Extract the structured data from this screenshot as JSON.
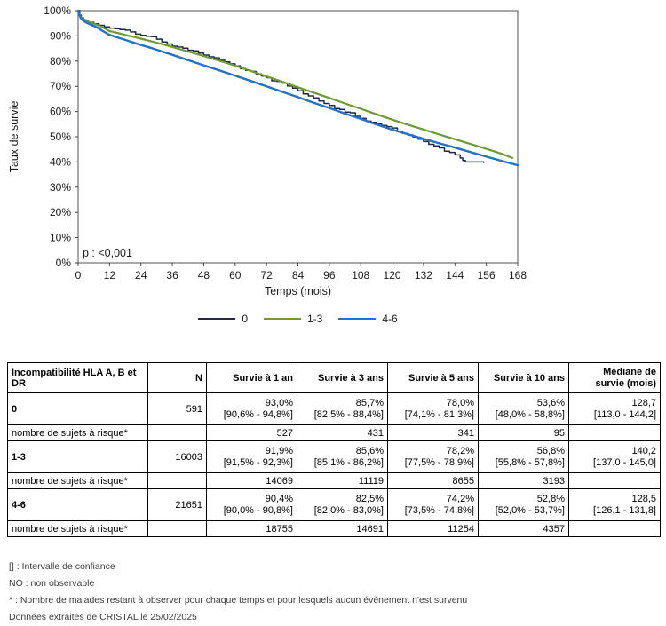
{
  "chart_data": {
    "type": "line",
    "title": "",
    "xlabel": "Temps (mois)",
    "ylabel": "Taux de survie",
    "annotation": "p : <0,001",
    "grid": false,
    "legend_position": "bottom",
    "xlim": [
      0,
      168
    ],
    "ylim": [
      0,
      100
    ],
    "x_ticks": {
      "values": [
        0,
        12,
        24,
        36,
        48,
        60,
        72,
        84,
        96,
        108,
        120,
        132,
        144,
        156,
        168
      ],
      "labels": [
        "0",
        "12",
        "24",
        "36",
        "48",
        "60",
        "72",
        "84",
        "96",
        "108",
        "120",
        "132",
        "144",
        "156",
        "168"
      ]
    },
    "y_ticks": {
      "values": [
        0,
        10,
        20,
        30,
        40,
        50,
        60,
        70,
        80,
        90,
        100
      ],
      "labels": [
        "0%",
        "10%",
        "20%",
        "30%",
        "40%",
        "50%",
        "60%",
        "70%",
        "80%",
        "90%",
        "100%"
      ]
    },
    "series": [
      {
        "name": "0",
        "color": "#1f2a4d",
        "style_hint": "km-step",
        "points": [
          [
            0,
            100
          ],
          [
            0.6,
            98.2
          ],
          [
            1.2,
            97.2
          ],
          [
            2,
            96.4
          ],
          [
            3,
            95.8
          ],
          [
            4,
            95.4
          ],
          [
            6,
            94.8
          ],
          [
            8,
            94.2
          ],
          [
            10,
            93.6
          ],
          [
            12,
            93.1
          ],
          [
            14,
            92.9
          ],
          [
            16,
            92.5
          ],
          [
            18,
            92.3
          ],
          [
            20,
            91.6
          ],
          [
            22,
            90.7
          ],
          [
            24,
            90.2
          ],
          [
            26,
            89.9
          ],
          [
            28,
            89.7
          ],
          [
            30,
            88.7
          ],
          [
            32,
            87.6
          ],
          [
            34,
            86.8
          ],
          [
            36,
            85.9
          ],
          [
            38,
            85.6
          ],
          [
            40,
            85.1
          ],
          [
            42,
            84.3
          ],
          [
            44,
            84.1
          ],
          [
            46,
            83.2
          ],
          [
            48,
            82.4
          ],
          [
            50,
            81.7
          ],
          [
            52,
            81.3
          ],
          [
            54,
            80.3
          ],
          [
            56,
            79.7
          ],
          [
            58,
            78.9
          ],
          [
            60,
            78.1
          ],
          [
            62,
            77.0
          ],
          [
            64,
            76.3
          ],
          [
            66,
            75.9
          ],
          [
            68,
            74.9
          ],
          [
            70,
            74.1
          ],
          [
            72,
            73.4
          ],
          [
            74,
            72.2
          ],
          [
            76,
            71.9
          ],
          [
            78,
            71.3
          ],
          [
            80,
            70.1
          ],
          [
            82,
            69.3
          ],
          [
            84,
            68.2
          ],
          [
            86,
            67.0
          ],
          [
            88,
            66.2
          ],
          [
            90,
            65.4
          ],
          [
            92,
            64.2
          ],
          [
            94,
            63.2
          ],
          [
            96,
            62.4
          ],
          [
            98,
            61.2
          ],
          [
            100,
            60.8
          ],
          [
            102,
            59.8
          ],
          [
            104,
            59.5
          ],
          [
            106,
            58.1
          ],
          [
            108,
            57.3
          ],
          [
            110,
            56.2
          ],
          [
            112,
            55.7
          ],
          [
            114,
            55.1
          ],
          [
            116,
            54.5
          ],
          [
            118,
            54.0
          ],
          [
            120,
            53.5
          ],
          [
            122,
            52.2
          ],
          [
            124,
            51.3
          ],
          [
            126,
            50.7
          ],
          [
            128,
            49.9
          ],
          [
            130,
            49.0
          ],
          [
            132,
            48.1
          ],
          [
            134,
            47.0
          ],
          [
            136,
            46.4
          ],
          [
            138,
            45.6
          ],
          [
            140,
            44.3
          ],
          [
            142,
            43.8
          ],
          [
            144,
            42.8
          ],
          [
            146,
            41.6
          ],
          [
            147,
            40.6
          ],
          [
            148,
            40.0
          ],
          [
            155,
            39.8
          ]
        ]
      },
      {
        "name": "1-3",
        "color": "#6e9a33",
        "style_hint": "line",
        "points": [
          [
            0,
            100
          ],
          [
            0.8,
            97.9
          ],
          [
            1.6,
            97.0
          ],
          [
            3,
            96.0
          ],
          [
            5,
            95.2
          ],
          [
            7,
            94.5
          ],
          [
            9,
            93.6
          ],
          [
            12,
            91.9
          ],
          [
            15,
            91.2
          ],
          [
            18,
            90.4
          ],
          [
            21,
            89.7
          ],
          [
            24,
            88.9
          ],
          [
            27,
            88.1
          ],
          [
            30,
            87.3
          ],
          [
            33,
            86.5
          ],
          [
            36,
            85.6
          ],
          [
            42,
            83.8
          ],
          [
            48,
            82.0
          ],
          [
            54,
            80.1
          ],
          [
            60,
            78.2
          ],
          [
            66,
            76.1
          ],
          [
            72,
            73.9
          ],
          [
            78,
            71.8
          ],
          [
            84,
            69.6
          ],
          [
            90,
            67.5
          ],
          [
            96,
            65.4
          ],
          [
            102,
            63.2
          ],
          [
            108,
            61.1
          ],
          [
            114,
            58.9
          ],
          [
            120,
            56.8
          ],
          [
            126,
            54.8
          ],
          [
            132,
            52.9
          ],
          [
            138,
            50.9
          ],
          [
            144,
            49.0
          ],
          [
            150,
            47.1
          ],
          [
            156,
            45.2
          ],
          [
            162,
            43.2
          ],
          [
            166,
            41.6
          ]
        ]
      },
      {
        "name": "4-6",
        "color": "#2472c8",
        "style_hint": "line",
        "points": [
          [
            0,
            100
          ],
          [
            0.8,
            97.4
          ],
          [
            1.6,
            96.3
          ],
          [
            3,
            95.3
          ],
          [
            5,
            94.4
          ],
          [
            7,
            93.5
          ],
          [
            9,
            92.2
          ],
          [
            12,
            90.4
          ],
          [
            15,
            89.4
          ],
          [
            18,
            88.4
          ],
          [
            21,
            87.4
          ],
          [
            24,
            86.4
          ],
          [
            27,
            85.5
          ],
          [
            30,
            84.5
          ],
          [
            33,
            83.5
          ],
          [
            36,
            82.5
          ],
          [
            42,
            80.4
          ],
          [
            48,
            78.3
          ],
          [
            54,
            76.3
          ],
          [
            60,
            74.2
          ],
          [
            66,
            72.1
          ],
          [
            72,
            70.0
          ],
          [
            78,
            67.8
          ],
          [
            84,
            65.7
          ],
          [
            90,
            63.5
          ],
          [
            96,
            61.4
          ],
          [
            102,
            59.2
          ],
          [
            108,
            57.1
          ],
          [
            114,
            54.9
          ],
          [
            120,
            52.8
          ],
          [
            126,
            51.0
          ],
          [
            132,
            49.2
          ],
          [
            138,
            47.4
          ],
          [
            144,
            45.7
          ],
          [
            150,
            43.9
          ],
          [
            156,
            42.1
          ],
          [
            162,
            40.4
          ],
          [
            168,
            38.7
          ]
        ]
      }
    ]
  },
  "table": {
    "headers": [
      "Incompatibilité HLA A, B et DR",
      "N",
      "Survie à 1 an",
      "Survie à 3 ans",
      "Survie à 5 ans",
      "Survie à 10 ans",
      "Médiane de\nsurvie (mois)"
    ],
    "risk_label": "nombre de sujets à risque*",
    "groups": [
      {
        "label": "0",
        "n": "591",
        "values": [
          "93,0%",
          "85,7%",
          "78,0%",
          "53,6%",
          "128,7"
        ],
        "ci": [
          "[90,6% - 94,8%]",
          "[82,5% - 88,4%]",
          "[74,1% - 81,3%]",
          "[48,0% - 58,8%]",
          "[113,0 - 144,2]"
        ],
        "risk": [
          "527",
          "431",
          "341",
          "95",
          ""
        ]
      },
      {
        "label": "1-3",
        "n": "16003",
        "values": [
          "91,9%",
          "85,6%",
          "78,2%",
          "56,8%",
          "140,2"
        ],
        "ci": [
          "[91,5% - 92,3%]",
          "[85,1% - 86,2%]",
          "[77,5% - 78,9%]",
          "[55,8% - 57,8%]",
          "[137,0 - 145,0]"
        ],
        "risk": [
          "14069",
          "11119",
          "8655",
          "3193",
          ""
        ]
      },
      {
        "label": "4-6",
        "n": "21651",
        "values": [
          "90,4%",
          "82,5%",
          "74,2%",
          "52,8%",
          "128,5"
        ],
        "ci": [
          "[90,0% - 90,8%]",
          "[82,0% - 83,0%]",
          "[73,5% - 74,8%]",
          "[52,0% - 53,7%]",
          "[126,1 - 131,8]"
        ],
        "risk": [
          "18755",
          "14691",
          "11254",
          "4357",
          ""
        ]
      }
    ]
  },
  "footnotes": [
    "[] : Intervalle de confiance",
    "NO : non observable",
    "* : Nombre de malades restant à observer pour chaque temps et pour lesquels aucun évènement n'est survenu",
    "Données extraites de CRISTAL le 25/02/2025"
  ]
}
